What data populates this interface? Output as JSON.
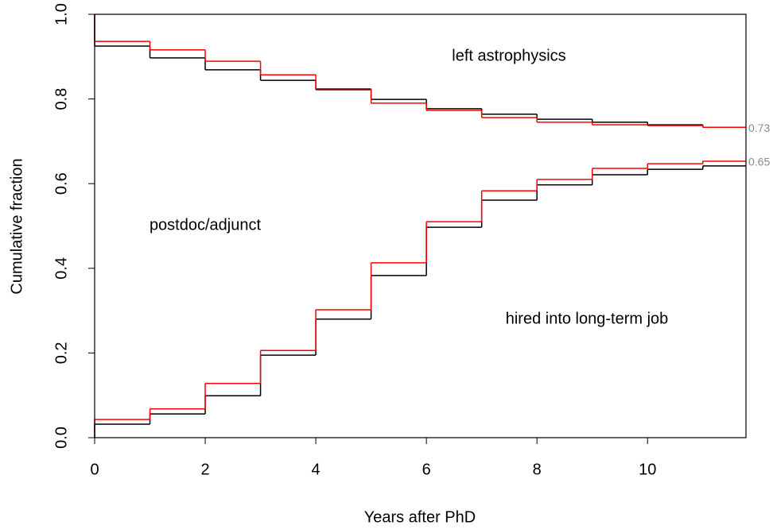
{
  "chart_data": {
    "type": "step",
    "x_label": "Years after PhD",
    "y_label": "Cumulative fraction",
    "x": [
      0,
      0,
      1,
      2,
      3,
      4,
      5,
      6,
      7,
      8,
      9,
      10,
      11
    ],
    "series": [
      {
        "color": "#000000",
        "values": [
          1.0,
          0.925,
          0.897,
          0.869,
          0.844,
          0.822,
          0.799,
          0.777,
          0.764,
          0.752,
          0.745,
          0.739,
          0.733
        ]
      },
      {
        "color": "#ff0000",
        "values": [
          1.0,
          0.936,
          0.916,
          0.889,
          0.857,
          0.824,
          0.79,
          0.773,
          0.756,
          0.745,
          0.739,
          0.737,
          0.733
        ]
      },
      {
        "color": "#000000",
        "values": [
          0.0,
          0.032,
          0.056,
          0.099,
          0.195,
          0.28,
          0.383,
          0.497,
          0.561,
          0.597,
          0.621,
          0.634,
          0.642
        ]
      },
      {
        "color": "#ff0000",
        "values": [
          0.0,
          0.043,
          0.068,
          0.128,
          0.206,
          0.302,
          0.413,
          0.51,
          0.583,
          0.61,
          0.636,
          0.647,
          0.653
        ]
      }
    ],
    "end_labels": [
      {
        "value": 0.733,
        "label": "0.73"
      },
      {
        "value": 0.653,
        "label": "0.65"
      }
    ],
    "annotations": [
      "left astrophysics",
      "postdoc/adjunct",
      "hired into long-term job"
    ],
    "xlim": [
      0,
      11.78
    ],
    "ylim": [
      0,
      1
    ],
    "xticks": [
      0,
      2,
      4,
      6,
      8,
      10
    ],
    "yticks": [
      {
        "value": 0,
        "label": "0.0"
      },
      0.2,
      0.4,
      0.6,
      0.8,
      {
        "value": 1,
        "label": "1.0"
      }
    ]
  }
}
